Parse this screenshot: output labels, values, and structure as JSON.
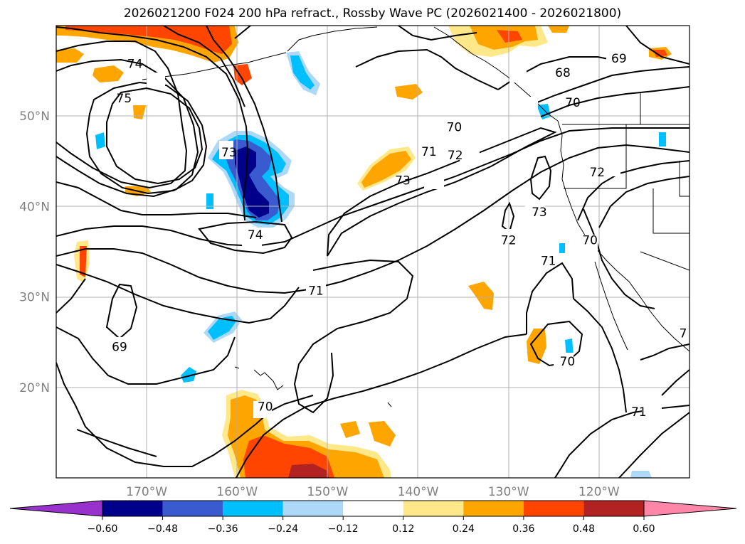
{
  "title": "2026021200 F024 200 hPa refract., Rossby Wave PC (2026021400 - 2026021800)",
  "map": {
    "lon_range": [
      -180,
      -110
    ],
    "lat_range": [
      10,
      60
    ],
    "lat_ticks": [
      {
        "value": 50,
        "label": "50°N"
      },
      {
        "value": 40,
        "label": "40°N"
      },
      {
        "value": 30,
        "label": "30°N"
      },
      {
        "value": 20,
        "label": "20°N"
      }
    ],
    "lon_ticks": [
      {
        "value": -170,
        "label": "170°W"
      },
      {
        "value": -160,
        "label": "160°W"
      },
      {
        "value": -150,
        "label": "150°W"
      },
      {
        "value": -140,
        "label": "140°W"
      },
      {
        "value": -130,
        "label": "130°W"
      },
      {
        "value": -120,
        "label": "120°W"
      }
    ],
    "gridlines": true,
    "contour_labels": [
      {
        "text": "74",
        "lon": -171.3,
        "lat": 55.8
      },
      {
        "text": "75",
        "lon": -172.5,
        "lat": 52.0
      },
      {
        "text": "73",
        "lon": -160.9,
        "lat": 46.0
      },
      {
        "text": "74",
        "lon": -158.0,
        "lat": 36.9
      },
      {
        "text": "70",
        "lon": -136.0,
        "lat": 48.8
      },
      {
        "text": "71",
        "lon": -138.8,
        "lat": 46.1
      },
      {
        "text": "72",
        "lon": -135.9,
        "lat": 45.7
      },
      {
        "text": "73",
        "lon": -141.7,
        "lat": 42.9
      },
      {
        "text": "72",
        "lon": -120.2,
        "lat": 43.8
      },
      {
        "text": "73",
        "lon": -126.6,
        "lat": 39.4
      },
      {
        "text": "72",
        "lon": -130.0,
        "lat": 36.3
      },
      {
        "text": "71",
        "lon": -125.6,
        "lat": 34.0
      },
      {
        "text": "70",
        "lon": -121.0,
        "lat": 36.3
      },
      {
        "text": "71",
        "lon": -151.3,
        "lat": 30.7
      },
      {
        "text": "69",
        "lon": -173.0,
        "lat": 24.5
      },
      {
        "text": "70",
        "lon": -123.5,
        "lat": 22.9
      },
      {
        "text": "70",
        "lon": -156.9,
        "lat": 17.9
      },
      {
        "text": "71",
        "lon": -115.6,
        "lat": 17.3
      },
      {
        "text": "69",
        "lon": -117.8,
        "lat": 56.4
      },
      {
        "text": "68",
        "lon": -124.0,
        "lat": 54.8
      },
      {
        "text": "70",
        "lon": -122.9,
        "lat": 51.5
      },
      {
        "text": "7",
        "lon": -110.7,
        "lat": 26.0
      }
    ]
  },
  "colorbar": {
    "levels": [
      "−0.60",
      "−0.48",
      "−0.36",
      "−0.24",
      "−0.12",
      "0.12",
      "0.24",
      "0.36",
      "0.48",
      "0.60"
    ],
    "colors": [
      "#9932cc",
      "#00008b",
      "#3a5bd0",
      "#00bfff",
      "#add8f7",
      "#ffffff",
      "#ffe88a",
      "#ffa500",
      "#ff4500",
      "#b22222",
      "#ff86a8"
    ],
    "extend": "both"
  }
}
